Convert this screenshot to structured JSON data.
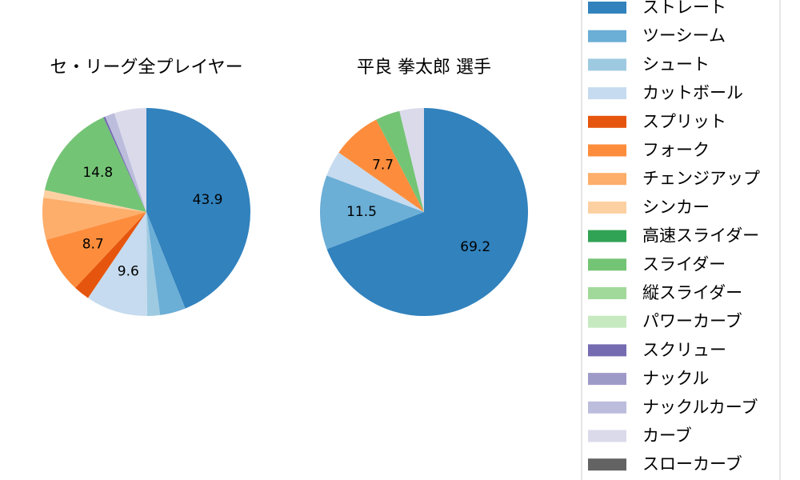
{
  "chart_data": {
    "type": "pie",
    "categories": [
      "ストレート",
      "ツーシーム",
      "シュート",
      "カットボール",
      "スプリット",
      "フォーク",
      "チェンジアップ",
      "シンカー",
      "高速スライダー",
      "スライダー",
      "縦スライダー",
      "パワーカーブ",
      "スクリュー",
      "ナックル",
      "ナックルカーブ",
      "カーブ",
      "スローカーブ"
    ],
    "colors": [
      "#3182bd",
      "#6baed6",
      "#9ecae1",
      "#c6dbef",
      "#e6550d",
      "#fd8d3c",
      "#fdae6b",
      "#fdd0a2",
      "#31a354",
      "#74c476",
      "#a1d99b",
      "#c7e9c0",
      "#756bb1",
      "#9e9ac8",
      "#bcbddc",
      "#dadaeb",
      "#636363"
    ],
    "series": [
      {
        "name": "セ・リーグ全プレイヤー",
        "values": [
          43.9,
          4.0,
          2.0,
          9.6,
          2.5,
          8.7,
          6.5,
          1.2,
          null,
          14.8,
          null,
          null,
          0.3,
          null,
          1.5,
          5.0,
          null
        ]
      },
      {
        "name": "平良 拳太郎  選手",
        "values": [
          69.2,
          11.5,
          null,
          4.0,
          null,
          7.7,
          null,
          null,
          null,
          3.8,
          null,
          null,
          null,
          null,
          null,
          3.8,
          null
        ]
      }
    ]
  }
}
